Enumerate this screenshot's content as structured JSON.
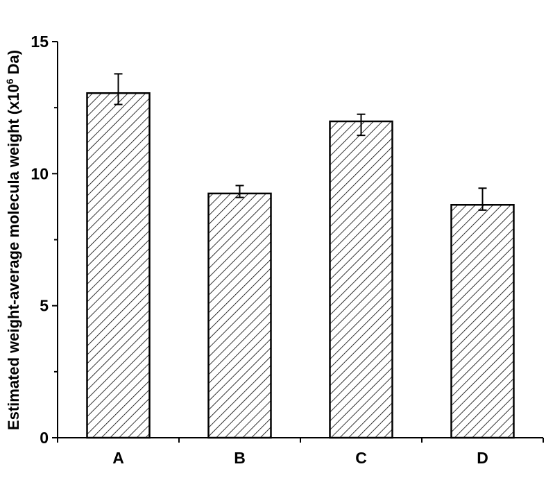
{
  "chart_data": {
    "type": "bar",
    "title": "",
    "categories": [
      "A",
      "B",
      "C",
      "D"
    ],
    "values": [
      13.05,
      9.25,
      11.98,
      8.82
    ],
    "errors": [
      {
        "low": 12.62,
        "high": 13.78
      },
      {
        "low": 9.1,
        "high": 9.55
      },
      {
        "low": 11.45,
        "high": 12.25
      },
      {
        "low": 8.62,
        "high": 9.45
      }
    ],
    "xlabel": "",
    "ylabel": {
      "prefix": "Estimated weight-average molecula weight (x10",
      "exponent": "6",
      "suffix": " Da)"
    },
    "ylim": [
      0,
      15
    ],
    "yticks": [
      "0",
      "5",
      "10",
      "15"
    ],
    "minor_ticks": true,
    "fill_pattern": "diagonal-hatch",
    "grid": false,
    "colors": {
      "bar_stroke": "#000000",
      "hatch": "#000000",
      "background": "#ffffff"
    }
  }
}
